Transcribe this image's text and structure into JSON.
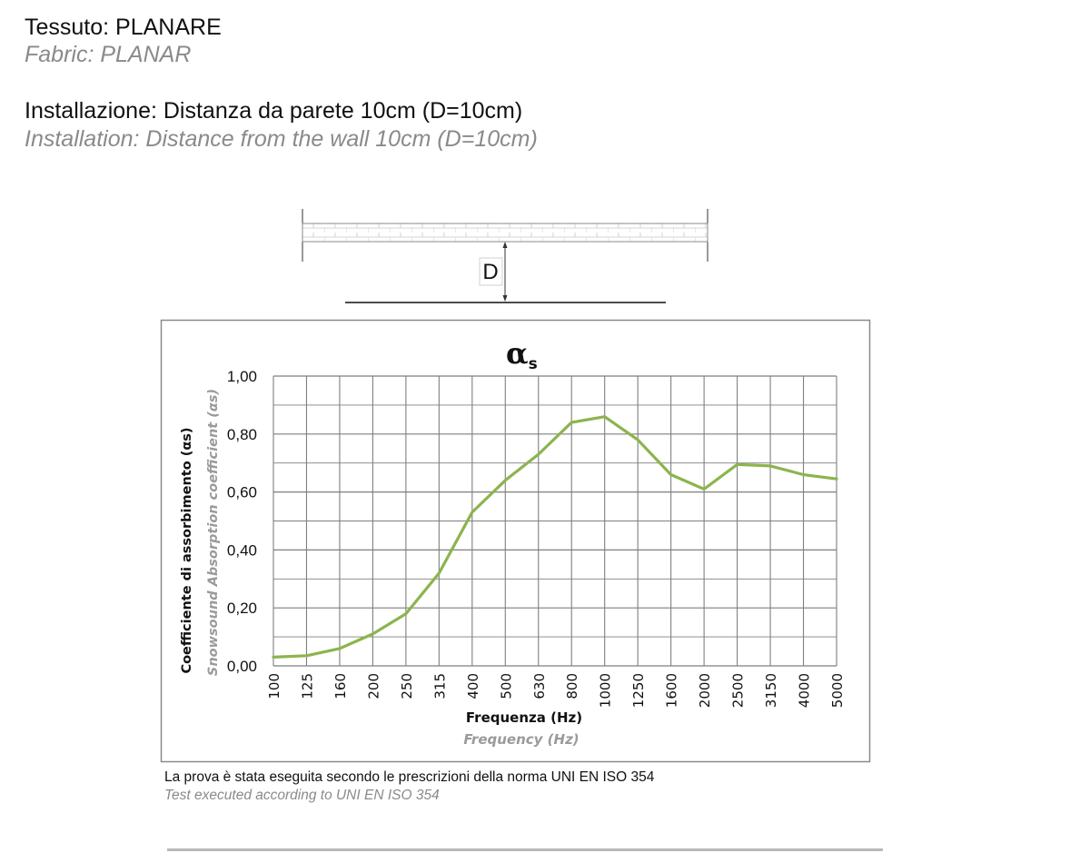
{
  "header": {
    "fabric_it": "Tessuto: PLANARE",
    "fabric_en": "Fabric: PLANAR",
    "install_it": "Installazione: Distanza da parete 10cm (D=10cm)",
    "install_en": "Installation: Distance from the wall 10cm (D=10cm)"
  },
  "diagram": {
    "distance_label": "D"
  },
  "footer": {
    "note_it": "La prova è stata eseguita secondo le prescrizioni della norma UNI EN ISO 354",
    "note_en": "Test executed according  to UNI EN ISO 354"
  },
  "colors": {
    "series": "#8cb44e",
    "grid": "#7f7f7f",
    "frame": "#8a8a8a"
  },
  "chart_data": {
    "type": "line",
    "title": "αs",
    "title_symbol": "α",
    "title_subscript": "s",
    "xlabel": "Frequenza (Hz)",
    "xlabel_en": "Frequency (Hz)",
    "ylabel": "Coefficiente di assorbimento (αs)",
    "ylabel_en": "Snowsound Absorption coefficient (αs)",
    "ylim": [
      0,
      1
    ],
    "yticks": [
      "0,00",
      "0,20",
      "0,40",
      "0,60",
      "0,80",
      "1,00"
    ],
    "categories": [
      "100",
      "125",
      "160",
      "200",
      "250",
      "315",
      "400",
      "500",
      "630",
      "800",
      "1000",
      "1250",
      "1600",
      "2000",
      "2500",
      "3150",
      "4000",
      "5000"
    ],
    "values": [
      0.03,
      0.035,
      0.06,
      0.11,
      0.18,
      0.32,
      0.53,
      0.64,
      0.73,
      0.84,
      0.86,
      0.78,
      0.66,
      0.61,
      0.695,
      0.69,
      0.66,
      0.645
    ],
    "grid": true,
    "legend": "none"
  }
}
